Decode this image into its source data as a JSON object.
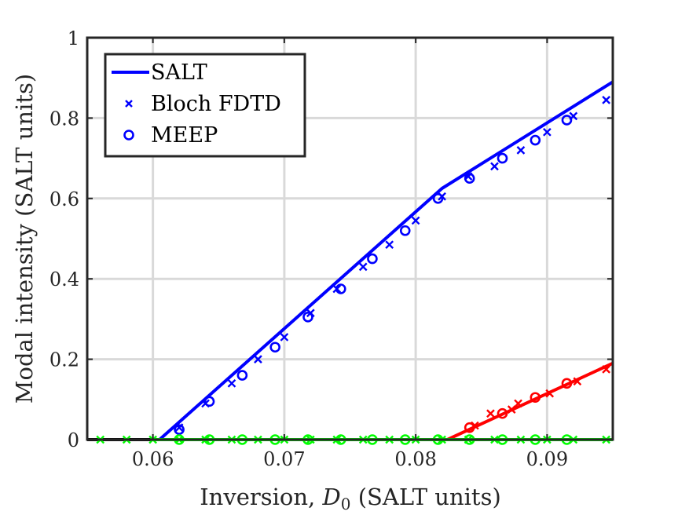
{
  "chart_data": {
    "type": "line",
    "xlabel_prefix": "Inversion, ",
    "xlabel_symbol": "D",
    "xlabel_subscript": "0",
    "xlabel_suffix": " (SALT units)",
    "ylabel": "Modal intensity (SALT units)",
    "xlim": [
      0.055,
      0.095
    ],
    "ylim": [
      0,
      1
    ],
    "xticks": [
      0.06,
      0.07,
      0.08,
      0.09
    ],
    "xtick_labels": [
      "0.06",
      "0.07",
      "0.08",
      "0.09"
    ],
    "yticks": [
      0,
      0.2,
      0.4,
      0.6,
      0.8,
      1
    ],
    "ytick_labels": [
      "0",
      "0.2",
      "0.4",
      "0.6",
      "0.8",
      "1"
    ],
    "grid": true,
    "legend_position": "top-left",
    "legend": [
      {
        "label": "SALT",
        "marker": "line",
        "color": "#0000ff"
      },
      {
        "label": "Bloch FDTD",
        "marker": "x",
        "color": "#0000ff"
      },
      {
        "label": "MEEP",
        "marker": "o",
        "color": "#0000ff"
      }
    ],
    "series": [
      {
        "kind": "line",
        "color": "#0000ff",
        "x": [
          0.055,
          0.0605,
          0.082,
          0.095
        ],
        "y": [
          0,
          0,
          0.625,
          0.89
        ]
      },
      {
        "kind": "line",
        "color": "#ff0000",
        "x": [
          0.0824,
          0.095
        ],
        "y": [
          0,
          0.19
        ]
      },
      {
        "kind": "line",
        "color": "#00ff00",
        "x": [
          0.055,
          0.095
        ],
        "y": [
          0,
          0
        ]
      },
      {
        "kind": "line",
        "color": "#000000",
        "x": [
          0.055,
          0.06
        ],
        "y": [
          0,
          0
        ]
      },
      {
        "kind": "x",
        "color": "#0000ff",
        "x": [
          0.062,
          0.064,
          0.066,
          0.068,
          0.07,
          0.072,
          0.074,
          0.076,
          0.078,
          0.08,
          0.082,
          0.084,
          0.086,
          0.088,
          0.09,
          0.092,
          0.0945
        ],
        "y": [
          0.03,
          0.09,
          0.14,
          0.2,
          0.255,
          0.315,
          0.375,
          0.43,
          0.485,
          0.545,
          0.605,
          0.655,
          0.68,
          0.72,
          0.765,
          0.805,
          0.845
        ]
      },
      {
        "kind": "o",
        "color": "#0000ff",
        "x": [
          0.062,
          0.0643,
          0.0668,
          0.0693,
          0.0718,
          0.0743,
          0.0767,
          0.0792,
          0.0817,
          0.0841,
          0.0866,
          0.0891,
          0.0915
        ],
        "y": [
          0.025,
          0.095,
          0.16,
          0.23,
          0.305,
          0.375,
          0.45,
          0.52,
          0.6,
          0.65,
          0.7,
          0.745,
          0.795
        ]
      },
      {
        "kind": "x",
        "color": "#ff0000",
        "x": [
          0.0845,
          0.0857,
          0.0873,
          0.0878,
          0.0902,
          0.0923,
          0.0945
        ],
        "y": [
          0.035,
          0.065,
          0.075,
          0.09,
          0.115,
          0.145,
          0.175
        ]
      },
      {
        "kind": "o",
        "color": "#ff0000",
        "x": [
          0.0841,
          0.0866,
          0.0891,
          0.0915
        ],
        "y": [
          0.03,
          0.065,
          0.105,
          0.14
        ]
      },
      {
        "kind": "x",
        "color": "#00ff00",
        "x": [
          0.056,
          0.058,
          0.06,
          0.062,
          0.064,
          0.066,
          0.068,
          0.07,
          0.072,
          0.074,
          0.076,
          0.078,
          0.08,
          0.082,
          0.084,
          0.086,
          0.088,
          0.09,
          0.092,
          0.0945
        ],
        "y": [
          0,
          0,
          0,
          0,
          0,
          0,
          0,
          0,
          0,
          0,
          0,
          0,
          0,
          0,
          0,
          0,
          0,
          0,
          0,
          0
        ]
      },
      {
        "kind": "o",
        "color": "#00ff00",
        "x": [
          0.062,
          0.0643,
          0.0668,
          0.0693,
          0.0718,
          0.0743,
          0.0767,
          0.0792,
          0.0817,
          0.0841,
          0.0866,
          0.0891,
          0.0915
        ],
        "y": [
          0,
          0,
          0,
          0,
          0,
          0,
          0,
          0,
          0,
          0,
          0,
          0,
          0
        ]
      }
    ]
  }
}
